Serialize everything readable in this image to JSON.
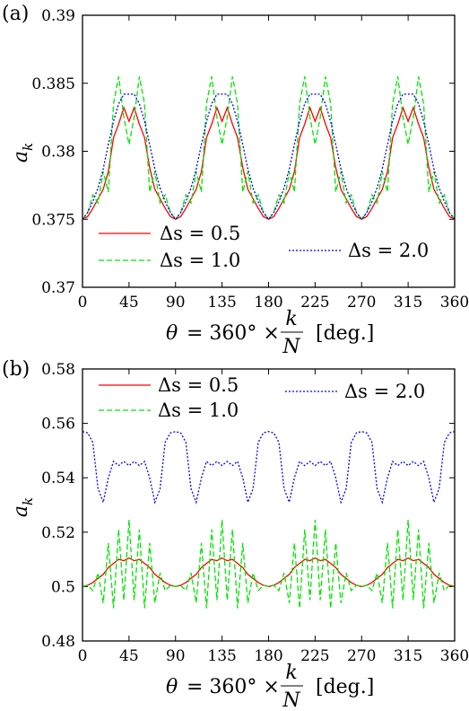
{
  "colors": {
    "ds05": "#ff0000",
    "ds10": "#00e600",
    "ds20": "#0000ff"
  },
  "chart_data": [
    {
      "type": "line",
      "panel_label": "(a)",
      "xlabel": "θ = 360° × k/N  [deg.]",
      "xlabel_parts": {
        "theta": "θ",
        "eq": " = 360° × ",
        "k": "k",
        "N": "N",
        "unit": "[deg.]"
      },
      "ylabel": "a_k",
      "ylabel_parts": {
        "a": "a",
        "k": "k"
      },
      "xlim": [
        0,
        360
      ],
      "ylim": [
        0.37,
        0.39
      ],
      "xticks": [
        0,
        45,
        90,
        135,
        180,
        225,
        270,
        315,
        360
      ],
      "yticks": [
        0.37,
        0.375,
        0.38,
        0.385,
        0.39
      ],
      "ytick_labels": [
        "0.37",
        "0.375",
        "0.38",
        "0.385",
        "0.39"
      ],
      "legend": [
        "Δs = 0.5",
        "Δs = 1.0",
        "Δs = 2.0"
      ],
      "series": [
        {
          "name": "Δs = 0.5",
          "color": "#ff0000",
          "style": "solid",
          "x": [
            0,
            5,
            10,
            15,
            20,
            25,
            30,
            35,
            40,
            45,
            50,
            55,
            60,
            65,
            70,
            75,
            80,
            85,
            90
          ],
          "y": [
            0.375,
            0.3752,
            0.3758,
            0.3765,
            0.3772,
            0.3785,
            0.381,
            0.382,
            0.3832,
            0.3822,
            0.3832,
            0.382,
            0.381,
            0.3788,
            0.3772,
            0.3765,
            0.3758,
            0.3752,
            0.375
          ]
        },
        {
          "name": "Δs = 1.0",
          "color": "#00e600",
          "style": "dashed",
          "x": [
            0,
            5,
            10,
            15,
            20,
            25,
            30,
            35,
            40,
            45,
            50,
            55,
            60,
            65,
            70,
            75,
            80,
            85,
            90
          ],
          "y": [
            0.375,
            0.3755,
            0.3768,
            0.3762,
            0.3785,
            0.377,
            0.3835,
            0.3855,
            0.3825,
            0.3805,
            0.3825,
            0.3855,
            0.3835,
            0.377,
            0.3785,
            0.3762,
            0.3768,
            0.3755,
            0.375
          ]
        },
        {
          "name": "Δs = 2.0",
          "color": "#0000ff",
          "style": "dotted",
          "x": [
            0,
            5,
            10,
            15,
            20,
            25,
            30,
            35,
            40,
            45,
            50,
            55,
            60,
            65,
            70,
            75,
            80,
            85,
            90
          ],
          "y": [
            0.375,
            0.3755,
            0.3763,
            0.3773,
            0.3787,
            0.3805,
            0.3822,
            0.3835,
            0.3842,
            0.3842,
            0.3842,
            0.3835,
            0.3822,
            0.3805,
            0.3787,
            0.3773,
            0.3763,
            0.3755,
            0.375
          ]
        }
      ],
      "period": 90
    },
    {
      "type": "line",
      "panel_label": "(b)",
      "xlabel": "θ = 360° × k/N  [deg.]",
      "xlabel_parts": {
        "theta": "θ",
        "eq": " = 360° × ",
        "k": "k",
        "N": "N",
        "unit": "[deg.]"
      },
      "ylabel": "a_k",
      "ylabel_parts": {
        "a": "a",
        "k": "k"
      },
      "xlim": [
        0,
        360
      ],
      "ylim": [
        0.48,
        0.58
      ],
      "xticks": [
        0,
        45,
        90,
        135,
        180,
        225,
        270,
        315,
        360
      ],
      "yticks": [
        0.48,
        0.5,
        0.52,
        0.54,
        0.56,
        0.58
      ],
      "ytick_labels": [
        "0.48",
        "0.5",
        "0.52",
        "0.54",
        "0.56",
        "0.58"
      ],
      "legend": [
        "Δs = 0.5",
        "Δs = 1.0",
        "Δs = 2.0"
      ],
      "series": [
        {
          "name": "Δs = 0.5",
          "color": "#ff0000",
          "style": "solid",
          "x": [
            0,
            5,
            10,
            15,
            20,
            25,
            30,
            35,
            40,
            45,
            50,
            55,
            60,
            65,
            70,
            75,
            80,
            85,
            90
          ],
          "y": [
            0.5,
            0.5005,
            0.5015,
            0.503,
            0.5045,
            0.507,
            0.5085,
            0.51,
            0.5095,
            0.5105,
            0.5095,
            0.51,
            0.5085,
            0.507,
            0.5045,
            0.503,
            0.5015,
            0.5005,
            0.5
          ]
        },
        {
          "name": "Δs = 1.0",
          "color": "#00e600",
          "style": "dashed",
          "x": [
            0,
            5,
            10,
            15,
            20,
            25,
            30,
            35,
            40,
            45,
            50,
            55,
            60,
            65,
            70,
            75,
            80,
            85,
            90
          ],
          "y": [
            0.5,
            0.5005,
            0.4985,
            0.505,
            0.494,
            0.516,
            0.492,
            0.521,
            0.495,
            0.5245,
            0.495,
            0.521,
            0.492,
            0.516,
            0.494,
            0.505,
            0.4985,
            0.5005,
            0.5
          ]
        },
        {
          "name": "Δs = 2.0",
          "color": "#0000ff",
          "style": "dotted",
          "x": [
            0,
            5,
            10,
            15,
            20,
            25,
            30,
            35,
            40,
            45,
            50,
            55,
            60,
            65,
            70,
            75,
            80,
            85,
            90
          ],
          "y": [
            0.557,
            0.5565,
            0.553,
            0.536,
            0.531,
            0.54,
            0.546,
            0.5445,
            0.546,
            0.5445,
            0.546,
            0.5445,
            0.546,
            0.54,
            0.531,
            0.536,
            0.553,
            0.5565,
            0.557
          ]
        }
      ],
      "period": 90
    }
  ]
}
